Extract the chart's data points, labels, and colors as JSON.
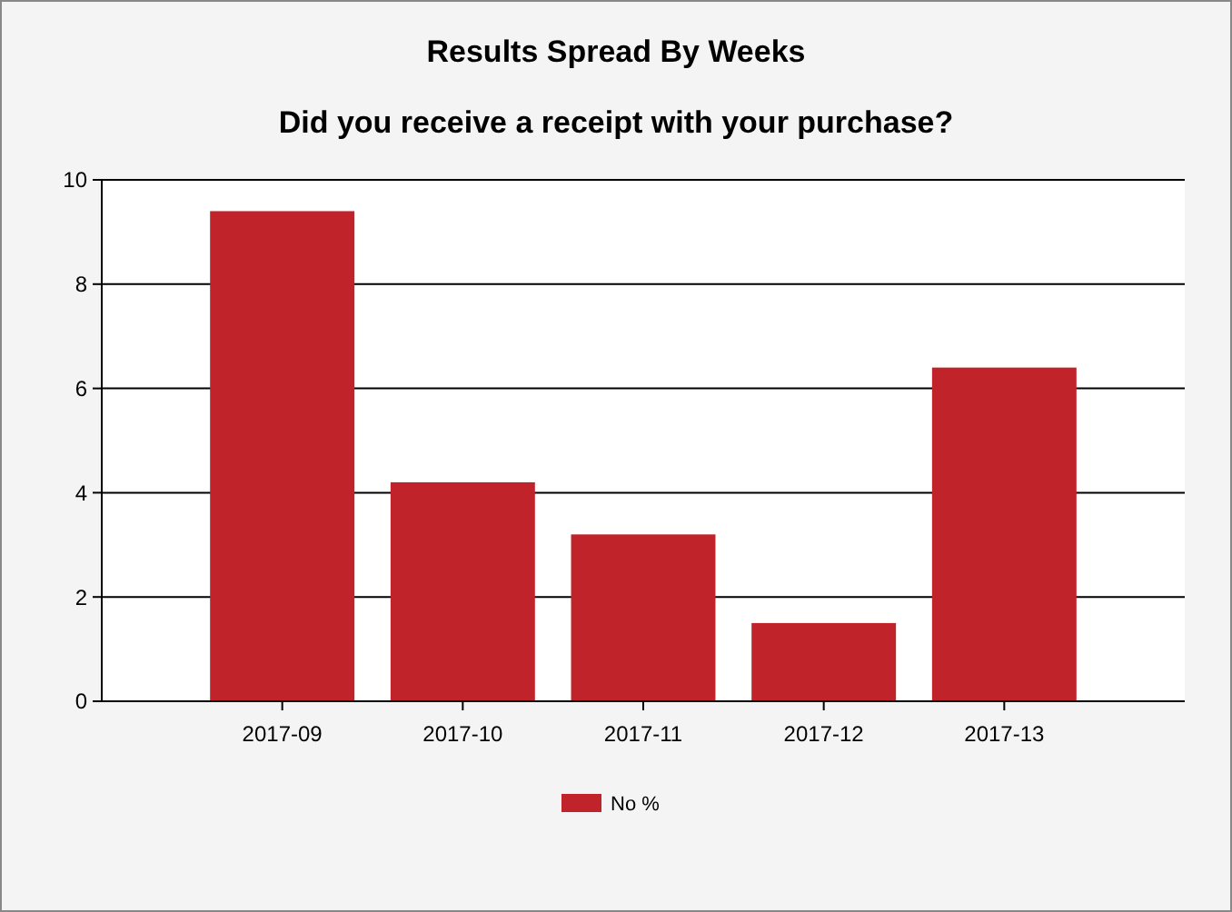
{
  "chart_data": {
    "type": "bar",
    "title": "Results Spread By Weeks",
    "subtitle": "Did you receive a receipt with your purchase?",
    "categories": [
      "2017-09",
      "2017-10",
      "2017-11",
      "2017-12",
      "2017-13"
    ],
    "series": [
      {
        "name": "No %",
        "color": "#c0232a",
        "values": [
          9.4,
          4.2,
          3.2,
          1.5,
          6.4
        ]
      }
    ],
    "ylim": [
      0,
      10
    ],
    "yticks": [
      0,
      2,
      4,
      6,
      8,
      10
    ],
    "grid": "y",
    "legend": "bottom"
  }
}
